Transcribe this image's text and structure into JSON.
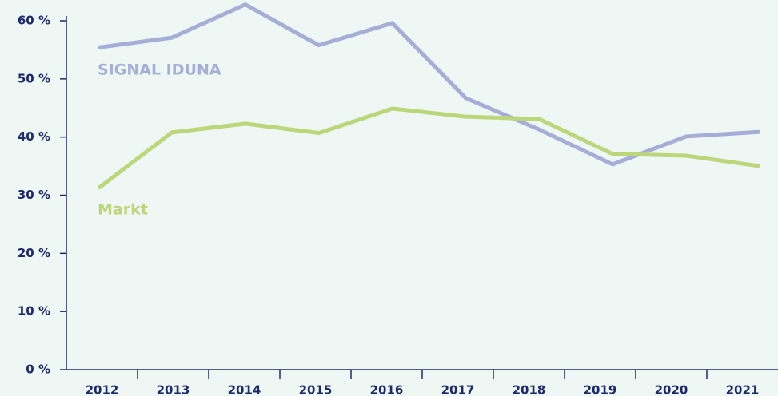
{
  "chart_data": {
    "type": "line",
    "categories": [
      "2012",
      "2013",
      "2014",
      "2015",
      "2016",
      "2017",
      "2018",
      "2019",
      "2020",
      "2021"
    ],
    "series": [
      {
        "name": "SIGNAL IDUNA",
        "color": "#a4aed6",
        "values": [
          55.4,
          57.1,
          62.8,
          55.8,
          59.6,
          46.7,
          41.3,
          35.3,
          40.1,
          40.9
        ]
      },
      {
        "name": "Markt",
        "color": "#bcd67a",
        "values": [
          31.2,
          40.8,
          42.3,
          40.7,
          44.9,
          43.5,
          43.1,
          37.1,
          36.8,
          35.0
        ]
      }
    ],
    "ylim": [
      0,
      60
    ],
    "yticks": [
      {
        "value": 0,
        "label": "0 %"
      },
      {
        "value": 10,
        "label": "10 %"
      },
      {
        "value": 20,
        "label": "20 %"
      },
      {
        "value": 30,
        "label": "30 %"
      },
      {
        "value": 40,
        "label": "40 %"
      },
      {
        "value": 50,
        "label": "50 %"
      },
      {
        "value": 60,
        "label": "60 %"
      }
    ]
  }
}
